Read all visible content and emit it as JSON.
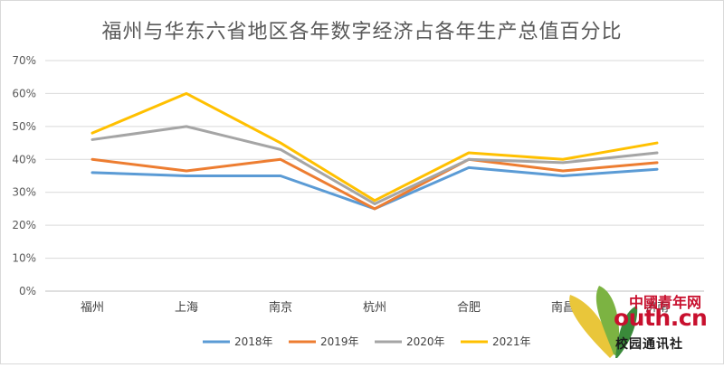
{
  "chart_data": {
    "type": "line",
    "title": "福州与华东六省地区各年数字经济占各年生产总值百分比",
    "categories": [
      "福州",
      "上海",
      "南京",
      "杭州",
      "合肥",
      "南昌",
      "济南"
    ],
    "series": [
      {
        "name": "2018年",
        "color": "#5b9bd5",
        "values": [
          36,
          35,
          35,
          25,
          37.5,
          35,
          37
        ]
      },
      {
        "name": "2019年",
        "color": "#ed7d31",
        "values": [
          40,
          36.5,
          40,
          25,
          40,
          36.5,
          39
        ]
      },
      {
        "name": "2020年",
        "color": "#a5a5a5",
        "values": [
          46,
          50,
          43,
          26.5,
          40,
          39,
          42
        ]
      },
      {
        "name": "2021年",
        "color": "#ffc000",
        "values": [
          48,
          60,
          45,
          27.5,
          42,
          40,
          45
        ]
      }
    ],
    "ylim": [
      0,
      70
    ],
    "yticks": [
      "0%",
      "10%",
      "20%",
      "30%",
      "40%",
      "50%",
      "60%",
      "70%"
    ],
    "grid": true,
    "legend": "bottom"
  },
  "watermark": {
    "brand": "中國青年网",
    "url": "outh.cn",
    "tagline": "校园通讯社"
  }
}
